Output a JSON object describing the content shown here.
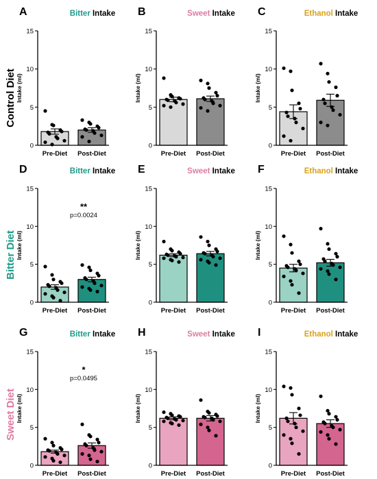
{
  "row_labels": [
    {
      "text": "Control Diet",
      "color": "#000000"
    },
    {
      "text": "Bitter Diet",
      "color": "#1e9a88"
    },
    {
      "text": "Sweet Diet",
      "color": "#e07aa2"
    }
  ],
  "intake_word": "Intake",
  "colors": {
    "bitter": "#1e9a88",
    "sweet": "#e07aa2",
    "ethanol": "#d9a21a",
    "control_pre": "#d9d9d9",
    "control_post": "#8c8c8c",
    "bitter_pre": "#9ad2c3",
    "bitter_post": "#1f9080",
    "sweet_pre": "#e9a4bf",
    "sweet_post": "#d4658f"
  },
  "chart_data": [
    {
      "panel": "A",
      "title_tastant": "Bitter",
      "tastant_color": "bitter",
      "type": "bar",
      "categories": [
        "Pre-Diet",
        "Post-Diet"
      ],
      "ylabel": "Intake (ml)",
      "ylim": [
        0,
        15
      ],
      "yticks": [
        0,
        5,
        10,
        15
      ],
      "fills": [
        "control_pre",
        "control_post"
      ],
      "means": [
        1.8,
        2.0
      ],
      "sem": [
        0.35,
        0.3
      ],
      "points": [
        [
          4.5,
          2.7,
          2.6,
          2.0,
          1.8,
          1.7,
          1.5,
          1.1,
          0.9,
          0.6,
          0.4,
          0.1
        ],
        [
          3.3,
          3.0,
          2.8,
          2.5,
          2.3,
          2.1,
          2.0,
          1.9,
          1.6,
          1.3,
          1.1,
          0.5
        ]
      ],
      "annotation": null,
      "p_text": null
    },
    {
      "panel": "B",
      "title_tastant": "Sweet",
      "tastant_color": "sweet",
      "type": "bar",
      "categories": [
        "Pre-Diet",
        "Post-Diet"
      ],
      "ylabel": "Intake (ml)",
      "ylim": [
        0,
        15
      ],
      "yticks": [
        0,
        5,
        10,
        15
      ],
      "fills": [
        "control_pre",
        "control_post"
      ],
      "means": [
        6.0,
        6.1
      ],
      "sem": [
        0.3,
        0.35
      ],
      "points": [
        [
          8.8,
          6.6,
          6.4,
          6.2,
          6.1,
          6.0,
          5.9,
          5.8,
          5.6,
          5.4,
          5.2,
          5.0
        ],
        [
          8.5,
          8.1,
          7.5,
          6.9,
          6.5,
          6.2,
          6.0,
          5.8,
          5.5,
          5.2,
          4.9,
          4.5
        ]
      ],
      "annotation": null,
      "p_text": null
    },
    {
      "panel": "C",
      "title_tastant": "Ethanol",
      "tastant_color": "ethanol",
      "type": "bar",
      "categories": [
        "Pre-Diet",
        "Post-Diet"
      ],
      "ylabel": "Intake (ml)",
      "ylim": [
        0,
        15
      ],
      "yticks": [
        0,
        5,
        10,
        15
      ],
      "fills": [
        "control_pre",
        "control_post"
      ],
      "means": [
        4.4,
        5.9
      ],
      "sem": [
        0.9,
        0.8
      ],
      "points": [
        [
          10.1,
          9.7,
          7.2,
          5.5,
          4.8,
          4.3,
          3.8,
          3.5,
          3.0,
          2.2,
          1.2,
          0.6
        ],
        [
          10.7,
          9.4,
          8.3,
          7.6,
          6.5,
          6.0,
          5.5,
          5.0,
          4.6,
          4.0,
          3.0,
          2.6
        ]
      ],
      "annotation": null,
      "p_text": null
    },
    {
      "panel": "D",
      "title_tastant": "Bitter",
      "tastant_color": "bitter",
      "type": "bar",
      "categories": [
        "Pre-Diet",
        "Post-Diet"
      ],
      "ylabel": "Intake (ml)",
      "ylim": [
        0,
        15
      ],
      "yticks": [
        0,
        5,
        10,
        15
      ],
      "fills": [
        "bitter_pre",
        "bitter_post"
      ],
      "means": [
        2.0,
        3.0
      ],
      "sem": [
        0.3,
        0.3
      ],
      "points": [
        [
          4.7,
          3.6,
          3.0,
          2.7,
          2.5,
          2.3,
          2.1,
          1.9,
          1.6,
          1.3,
          1.1,
          0.8,
          0.6,
          0.2
        ],
        [
          4.9,
          4.6,
          4.2,
          3.8,
          3.5,
          3.2,
          3.0,
          2.8,
          2.5,
          2.2,
          2.0,
          1.8,
          1.6,
          1.4
        ]
      ],
      "annotation": "**",
      "p_text": "p=0.0024"
    },
    {
      "panel": "E",
      "title_tastant": "Sweet",
      "tastant_color": "sweet",
      "type": "bar",
      "categories": [
        "Pre-Diet",
        "Post-Diet"
      ],
      "ylabel": "Intake (ml)",
      "ylim": [
        0,
        15
      ],
      "yticks": [
        0,
        5,
        10,
        15
      ],
      "fills": [
        "bitter_pre",
        "bitter_post"
      ],
      "means": [
        6.2,
        6.4
      ],
      "sem": [
        0.2,
        0.3
      ],
      "points": [
        [
          8.0,
          7.0,
          6.8,
          6.6,
          6.4,
          6.3,
          6.2,
          6.1,
          6.0,
          5.9,
          5.8,
          5.6,
          5.5,
          5.3
        ],
        [
          8.6,
          8.0,
          7.5,
          7.0,
          6.7,
          6.5,
          6.4,
          6.2,
          6.0,
          5.8,
          5.6,
          5.4,
          5.2,
          4.9
        ]
      ],
      "annotation": null,
      "p_text": null
    },
    {
      "panel": "F",
      "title_tastant": "Ethanol",
      "tastant_color": "ethanol",
      "type": "bar",
      "categories": [
        "Pre-Diet",
        "Post-Diet"
      ],
      "ylabel": "Intake (ml)",
      "ylim": [
        0,
        15
      ],
      "yticks": [
        0,
        5,
        10,
        15
      ],
      "fills": [
        "bitter_pre",
        "bitter_post"
      ],
      "means": [
        4.5,
        5.2
      ],
      "sem": [
        0.5,
        0.45
      ],
      "points": [
        [
          8.7,
          7.6,
          6.5,
          5.4,
          5.0,
          4.8,
          4.6,
          4.4,
          4.2,
          3.8,
          3.4,
          2.8,
          2.3,
          1.2
        ],
        [
          9.7,
          7.7,
          7.0,
          6.4,
          6.0,
          5.7,
          5.4,
          5.1,
          4.9,
          4.6,
          4.4,
          4.1,
          3.7,
          3.0
        ]
      ],
      "annotation": null,
      "p_text": null
    },
    {
      "panel": "G",
      "title_tastant": "Bitter",
      "tastant_color": "bitter",
      "type": "bar",
      "categories": [
        "Pre-Diet",
        "Post-Diet"
      ],
      "ylabel": "Intake (ml)",
      "ylim": [
        0,
        15
      ],
      "yticks": [
        0,
        5,
        10,
        15
      ],
      "fills": [
        "sweet_pre",
        "sweet_post"
      ],
      "means": [
        1.8,
        2.6
      ],
      "sem": [
        0.2,
        0.35
      ],
      "points": [
        [
          3.5,
          3.0,
          2.6,
          2.3,
          2.1,
          2.0,
          1.9,
          1.7,
          1.5,
          1.3,
          1.1,
          0.9,
          0.6,
          0.4
        ],
        [
          5.4,
          4.0,
          3.8,
          3.4,
          3.0,
          2.8,
          2.6,
          2.3,
          2.0,
          1.8,
          1.5,
          1.3,
          0.8,
          0.5
        ]
      ],
      "annotation": "*",
      "p_text": "p=0.0495"
    },
    {
      "panel": "H",
      "title_tastant": "Sweet",
      "tastant_color": "sweet",
      "type": "bar",
      "categories": [
        "Pre-Diet",
        "Post-Diet"
      ],
      "ylabel": "Intake (ml)",
      "ylim": [
        0,
        15
      ],
      "yticks": [
        0,
        5,
        10,
        15
      ],
      "fills": [
        "sweet_pre",
        "sweet_post"
      ],
      "means": [
        6.2,
        6.2
      ],
      "sem": [
        0.2,
        0.35
      ],
      "points": [
        [
          7.0,
          6.8,
          6.6,
          6.5,
          6.4,
          6.3,
          6.2,
          6.1,
          6.0,
          5.9,
          5.8,
          5.6,
          5.5,
          5.3
        ],
        [
          8.6,
          7.1,
          6.9,
          6.7,
          6.5,
          6.4,
          6.3,
          6.2,
          6.0,
          5.8,
          5.4,
          5.0,
          4.6,
          3.9
        ]
      ],
      "annotation": null,
      "p_text": null
    },
    {
      "panel": "I",
      "title_tastant": "Ethanol",
      "tastant_color": "ethanol",
      "type": "bar",
      "categories": [
        "Pre-Diet",
        "Post-Diet"
      ],
      "ylabel": "Intake (ml)",
      "ylim": [
        0,
        15
      ],
      "yticks": [
        0,
        5,
        10,
        15
      ],
      "fills": [
        "sweet_pre",
        "sweet_post"
      ],
      "means": [
        6.2,
        5.5
      ],
      "sem": [
        0.75,
        0.5
      ],
      "points": [
        [
          10.4,
          10.2,
          9.3,
          7.5,
          6.6,
          6.2,
          5.8,
          5.5,
          5.0,
          4.5,
          4.0,
          3.5,
          2.9,
          1.5
        ],
        [
          9.1,
          7.2,
          6.8,
          6.4,
          6.0,
          5.7,
          5.5,
          5.2,
          5.0,
          4.7,
          4.4,
          4.0,
          3.5,
          2.8
        ]
      ],
      "annotation": null,
      "p_text": null
    }
  ]
}
